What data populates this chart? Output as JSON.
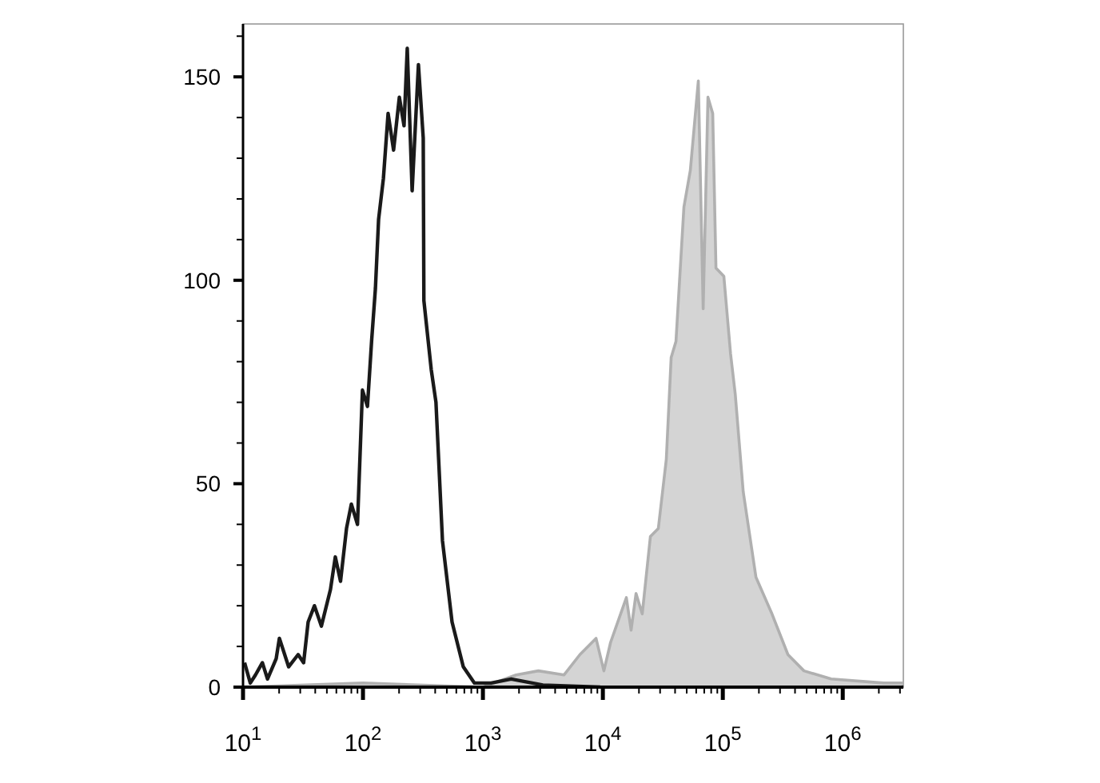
{
  "chart_data": {
    "type": "line",
    "log": "x",
    "grid": false,
    "marker": "none",
    "xlim": [
      10,
      3200000
    ],
    "xticks": [
      {
        "value": 10,
        "label": "10$^{1}$"
      },
      {
        "value": 20,
        "label": null
      },
      {
        "value": 30,
        "label": null
      },
      {
        "value": 40,
        "label": null
      },
      {
        "value": 50,
        "label": null
      },
      {
        "value": 60,
        "label": null
      },
      {
        "value": 70,
        "label": null
      },
      {
        "value": 80,
        "label": null
      },
      {
        "value": 90,
        "label": null
      },
      {
        "value": 100,
        "label": "10$^{2}$"
      },
      {
        "value": 200,
        "label": null
      },
      {
        "value": 300,
        "label": null
      },
      {
        "value": 400,
        "label": null
      },
      {
        "value": 500,
        "label": null
      },
      {
        "value": 600,
        "label": null
      },
      {
        "value": 700,
        "label": null
      },
      {
        "value": 800,
        "label": null
      },
      {
        "value": 900,
        "label": null
      },
      {
        "value": 1000,
        "label": "10$^{3}$"
      },
      {
        "value": 2000,
        "label": null
      },
      {
        "value": 3000,
        "label": null
      },
      {
        "value": 4000,
        "label": null
      },
      {
        "value": 5000,
        "label": null
      },
      {
        "value": 6000,
        "label": null
      },
      {
        "value": 7000,
        "label": null
      },
      {
        "value": 8000,
        "label": null
      },
      {
        "value": 9000,
        "label": null
      },
      {
        "value": 10000,
        "label": "10$^{4}$"
      },
      {
        "value": 20000,
        "label": null
      },
      {
        "value": 30000,
        "label": null
      },
      {
        "value": 40000,
        "label": null
      },
      {
        "value": 50000,
        "label": null
      },
      {
        "value": 60000,
        "label": null
      },
      {
        "value": 70000,
        "label": null
      },
      {
        "value": 80000,
        "label": null
      },
      {
        "value": 90000,
        "label": null
      },
      {
        "value": 100000,
        "label": "10$^{5}$"
      },
      {
        "value": 200000,
        "label": null
      },
      {
        "value": 300000,
        "label": null
      },
      {
        "value": 400000,
        "label": null
      },
      {
        "value": 500000,
        "label": null
      },
      {
        "value": 600000,
        "label": null
      },
      {
        "value": 700000,
        "label": null
      },
      {
        "value": 800000,
        "label": null
      },
      {
        "value": 900000,
        "label": null
      },
      {
        "value": 1000000,
        "label": "10$^{6}$"
      },
      {
        "value": 2000000,
        "label": null
      },
      {
        "value": 3000000,
        "label": null
      }
    ],
    "ylim": [
      0,
      163
    ],
    "yticks": [
      0,
      {
        "value": 10,
        "label": null
      },
      {
        "value": 20,
        "label": null
      },
      {
        "value": 30,
        "label": null
      },
      {
        "value": 40,
        "label": null
      },
      50,
      {
        "value": 60,
        "label": null
      },
      {
        "value": 70,
        "label": null
      },
      {
        "value": 80,
        "label": null
      },
      {
        "value": 90,
        "label": null
      },
      100,
      {
        "value": 110,
        "label": null
      },
      {
        "value": 120,
        "label": null
      },
      {
        "value": 130,
        "label": null
      },
      {
        "value": 140,
        "label": null
      },
      150,
      {
        "value": 160,
        "label": null
      }
    ],
    "series": [
      {
        "type": "area",
        "color": "#b0b0b0",
        "x": [
          10,
          100,
          1000,
          1890,
          2900,
          4750,
          6440,
          8770,
          10200,
          11600,
          15700,
          17200,
          18900,
          21300,
          24900,
          29000,
          33800,
          37100,
          40700,
          47400,
          53600,
          62500,
          64000,
          68600,
          75200,
          82400,
          87700,
          102000,
          116000,
          127000,
          148000,
          189000,
          257000,
          349000,
          475000,
          800000,
          2200000,
          3200000
        ],
        "values": [
          0,
          1,
          0,
          3,
          4,
          3,
          8,
          12,
          4,
          11,
          22,
          14,
          23,
          18,
          37,
          39,
          56,
          81,
          85,
          118,
          127,
          149,
          135,
          93,
          145,
          141,
          103,
          101,
          82,
          72,
          48,
          27,
          18,
          8,
          4,
          2,
          1,
          1
        ]
      },
      {
        "color": "#1a1a1a",
        "x": [
          10.3,
          11.5,
          12.7,
          14.5,
          16,
          18.9,
          20.1,
          24,
          28.8,
          32,
          34.9,
          39.4,
          45,
          53.6,
          58.8,
          65,
          72.9,
          80,
          90,
          99,
          109,
          118,
          127,
          135,
          148,
          162,
          180,
          201,
          220,
          234,
          257,
          290,
          318,
          322,
          371,
          406,
          460,
          553,
          686,
          850,
          1170,
          1720,
          3160,
          9500
        ],
        "values": [
          6,
          1,
          3,
          6,
          2,
          7,
          12,
          5,
          8,
          6,
          16,
          20,
          15,
          24,
          32,
          26,
          39,
          45,
          40,
          73,
          69,
          85,
          98,
          115,
          125,
          141,
          132,
          145,
          138,
          157,
          122,
          153,
          135,
          95,
          78,
          70,
          36,
          16,
          5,
          1,
          1,
          2,
          0.5,
          0
        ]
      }
    ]
  }
}
